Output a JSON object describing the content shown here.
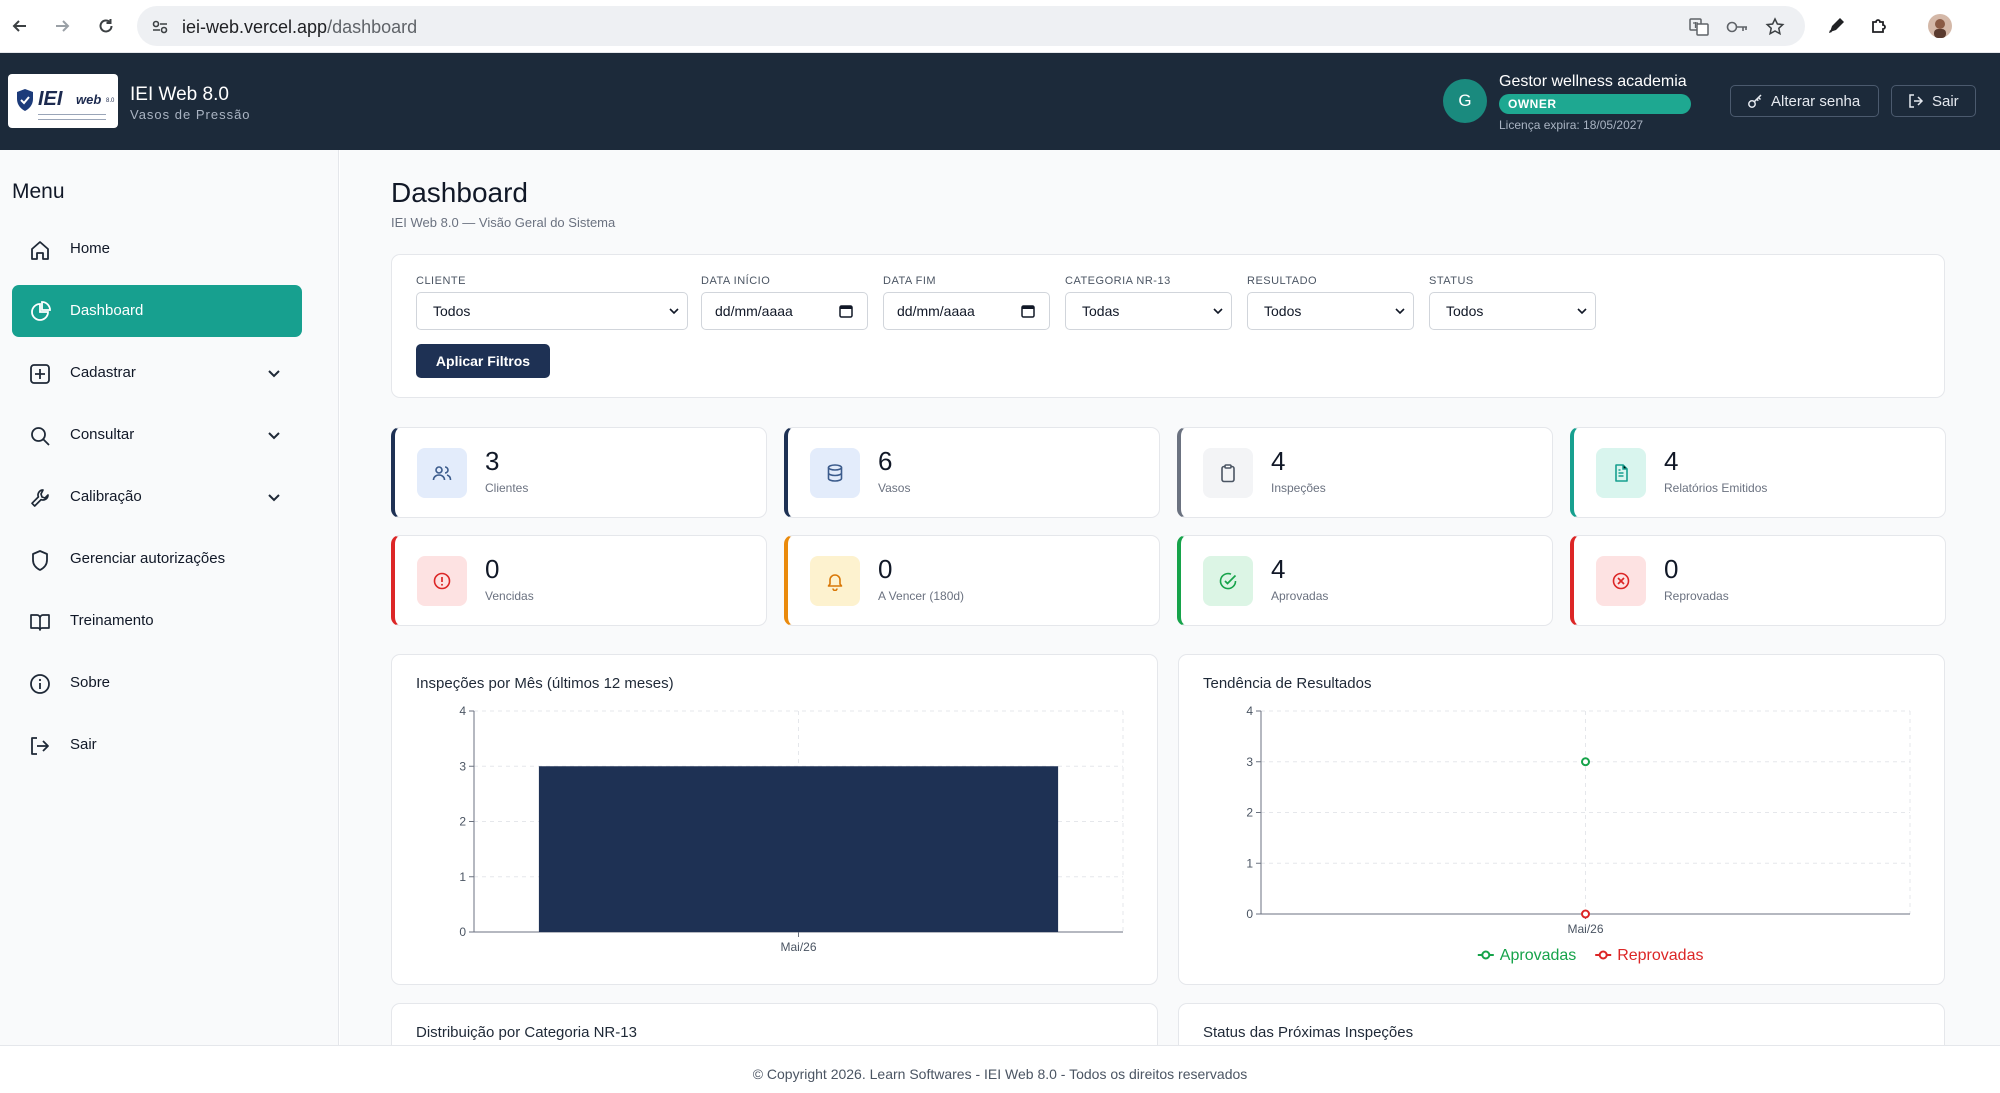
{
  "browser": {
    "url_host": "iei-web.vercel.app",
    "url_path": "/dashboard"
  },
  "header": {
    "logo_brand": "IEI",
    "logo_brand2": "web",
    "logo_version": "8.0",
    "title": "IEI Web 8.0",
    "subtitle": "Vasos de Pressão",
    "avatar_initial": "G",
    "user_name": "Gestor wellness academia",
    "role_badge": "OWNER",
    "license": "Licença expira: 18/05/2027",
    "change_password_label": "Alterar senha",
    "logout_label": "Sair"
  },
  "sidebar": {
    "title": "Menu",
    "items": [
      {
        "label": "Home",
        "icon": "home-icon",
        "expandable": false,
        "active": false
      },
      {
        "label": "Dashboard",
        "icon": "pie-chart-icon",
        "expandable": false,
        "active": true
      },
      {
        "label": "Cadastrar",
        "icon": "plus-square-icon",
        "expandable": true,
        "active": false
      },
      {
        "label": "Consultar",
        "icon": "search-icon",
        "expandable": true,
        "active": false
      },
      {
        "label": "Calibração",
        "icon": "wrench-icon",
        "expandable": true,
        "active": false
      },
      {
        "label": "Gerenciar autorizações",
        "icon": "shield-icon",
        "expandable": false,
        "active": false
      },
      {
        "label": "Treinamento",
        "icon": "book-icon",
        "expandable": false,
        "active": false
      },
      {
        "label": "Sobre",
        "icon": "info-icon",
        "expandable": false,
        "active": false
      },
      {
        "label": "Sair",
        "icon": "logout-icon",
        "expandable": false,
        "active": false
      }
    ]
  },
  "page": {
    "title": "Dashboard",
    "subtitle": "IEI Web 8.0 — Visão Geral do Sistema"
  },
  "filters": {
    "cliente_label": "CLIENTE",
    "cliente_value": "Todos",
    "data_inicio_label": "DATA INÍCIO",
    "data_inicio_placeholder": "dd/mm/aaaa",
    "data_fim_label": "DATA FIM",
    "data_fim_placeholder": "dd/mm/aaaa",
    "categoria_label": "CATEGORIA NR-13",
    "categoria_value": "Todas",
    "resultado_label": "RESULTADO",
    "resultado_value": "Todos",
    "status_label": "STATUS",
    "status_value": "Todos",
    "apply_label": "Aplicar Filtros"
  },
  "stats": [
    {
      "value": "3",
      "label": "Clientes",
      "icon": "users-icon",
      "accent": "#1e3154",
      "icon_bg": "#e3ecfb",
      "icon_color": "#3b5b8c"
    },
    {
      "value": "6",
      "label": "Vasos",
      "icon": "database-icon",
      "accent": "#1e3154",
      "icon_bg": "#e3ecfb",
      "icon_color": "#3b5b8c"
    },
    {
      "value": "4",
      "label": "Inspeções",
      "icon": "clipboard-icon",
      "accent": "#6b7280",
      "icon_bg": "#f3f4f6",
      "icon_color": "#4b5563"
    },
    {
      "value": "4",
      "label": "Relatórios Emitidos",
      "icon": "file-text-icon",
      "accent": "#17a08f",
      "icon_bg": "#d9f5ee",
      "icon_color": "#17a08f"
    },
    {
      "value": "0",
      "label": "Vencidas",
      "icon": "alert-circle-icon",
      "accent": "#dc2626",
      "icon_bg": "#fde2e2",
      "icon_color": "#dc2626"
    },
    {
      "value": "0",
      "label": "A Vencer (180d)",
      "icon": "bell-icon",
      "accent": "#ea8a0c",
      "icon_bg": "#fdf2cf",
      "icon_color": "#d97706"
    },
    {
      "value": "4",
      "label": "Aprovadas",
      "icon": "check-circle-icon",
      "accent": "#16a34a",
      "icon_bg": "#dcf5e5",
      "icon_color": "#16a34a"
    },
    {
      "value": "0",
      "label": "Reprovadas",
      "icon": "x-circle-icon",
      "accent": "#dc2626",
      "icon_bg": "#fde2e2",
      "icon_color": "#dc2626"
    }
  ],
  "charts": {
    "monthly_title": "Inspeções por Mês (últimos 12 meses)",
    "trend_title": "Tendência de Resultados",
    "category_title": "Distribuição por Categoria NR-13",
    "next_status_title": "Status das Próximas Inspeções"
  },
  "chart_data": [
    {
      "type": "bar",
      "title": "Inspeções por Mês (últimos 12 meses)",
      "categories": [
        "Mai/26"
      ],
      "values": [
        3
      ],
      "ylim": [
        0,
        4
      ],
      "yticks": [
        0,
        1,
        2,
        3,
        4
      ],
      "grid": true,
      "color": "#1e3154"
    },
    {
      "type": "line",
      "title": "Tendência de Resultados",
      "categories": [
        "Mai/26"
      ],
      "series": [
        {
          "name": "Aprovadas",
          "values": [
            3
          ],
          "color": "#16a34a"
        },
        {
          "name": "Reprovadas",
          "values": [
            0
          ],
          "color": "#dc2626"
        }
      ],
      "ylim": [
        0,
        4
      ],
      "yticks": [
        0,
        1,
        2,
        3,
        4
      ],
      "grid": true,
      "legend": "bottom-center"
    }
  ],
  "footer": {
    "text": "© Copyright 2026. Learn Softwares - IEI Web 8.0 - Todos os direitos reservados"
  }
}
